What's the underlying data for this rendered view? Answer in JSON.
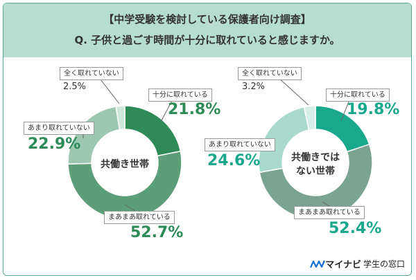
{
  "header": {
    "title_line1": "【中学受験を検討している保護者向け調査】",
    "title_line2": "Q. 子供と過ごす時間が十分に取れていると感じますか。"
  },
  "colors": {
    "frame": "#5aa88a",
    "header_bg": "#b7ddd0",
    "left_chart": [
      "#2e8b57",
      "#5c9e78",
      "#9cc7b1",
      "#cfe8dc"
    ],
    "right_chart": [
      "#1aa88c",
      "#7aa391",
      "#a9d9cd",
      "#d8efe9"
    ]
  },
  "chart_data": [
    {
      "type": "pie",
      "subtype": "donut",
      "center_label": "共働き世帯",
      "categories": [
        "十分に取れている",
        "まあまあ取れている",
        "あまり取れていない",
        "全く取れていない"
      ],
      "values": [
        21.8,
        52.7,
        22.9,
        2.5
      ],
      "value_labels": [
        "21.8%",
        "52.7%",
        "22.9%",
        "2.5%"
      ]
    },
    {
      "type": "pie",
      "subtype": "donut",
      "center_label_line1": "共働きでは",
      "center_label_line2": "ない世帯",
      "categories": [
        "十分に取れている",
        "まあまあ取れている",
        "あまり取れていない",
        "全く取れていない"
      ],
      "values": [
        19.8,
        52.4,
        24.6,
        3.2
      ],
      "value_labels": [
        "19.8%",
        "52.4%",
        "24.6%",
        "3.2%"
      ]
    }
  ],
  "logo": {
    "icon": "mynavi-logo-icon",
    "brand": "マイナビ",
    "suffix": "学生の窓口"
  }
}
